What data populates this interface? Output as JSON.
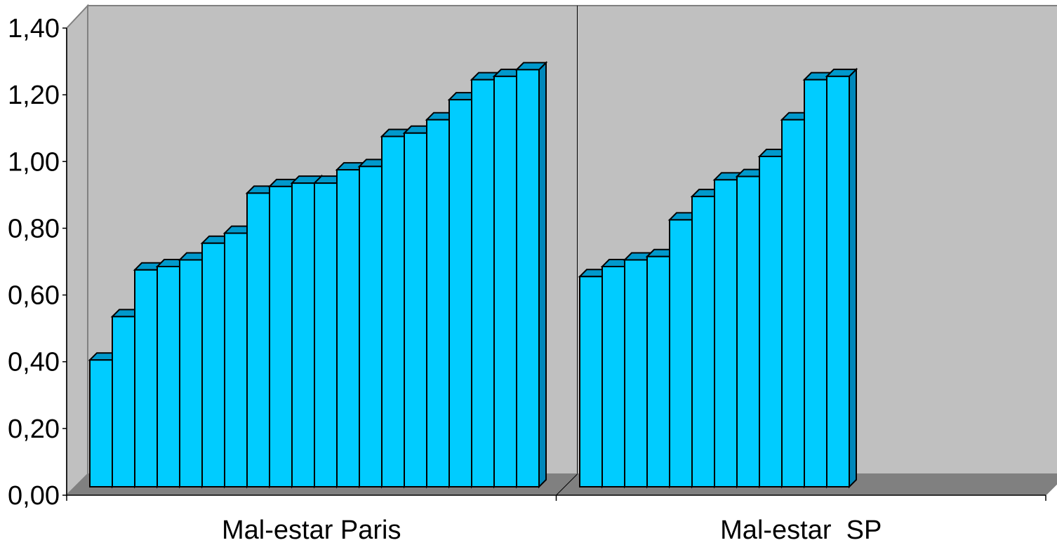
{
  "chart_data": {
    "type": "bar",
    "style": "3d-clustered-column",
    "categories": [
      "Mal-estar Paris",
      "Mal-estar  SP"
    ],
    "groups": [
      {
        "category": "Mal-estar Paris",
        "values": [
          0.38,
          0.51,
          0.65,
          0.66,
          0.68,
          0.73,
          0.76,
          0.88,
          0.9,
          0.91,
          0.91,
          0.95,
          0.96,
          1.05,
          1.06,
          1.1,
          1.16,
          1.22,
          1.23,
          1.25
        ]
      },
      {
        "category": "Mal-estar  SP",
        "values": [
          0.63,
          0.66,
          0.68,
          0.69,
          0.8,
          0.87,
          0.92,
          0.93,
          0.99,
          1.1,
          1.22,
          1.23
        ]
      }
    ],
    "y_ticks": [
      "0,00",
      "0,20",
      "0,40",
      "0,60",
      "0,80",
      "1,00",
      "1,20",
      "1,40"
    ],
    "ylim": [
      0,
      1.4
    ],
    "grid": false,
    "legend": "none",
    "colors": {
      "bar_front": "#00ccff",
      "bar_top": "#0099cc",
      "bar_side": "#0088bb",
      "wall": "#c0c0c0",
      "floor": "#808080",
      "outline": "#000000"
    }
  }
}
